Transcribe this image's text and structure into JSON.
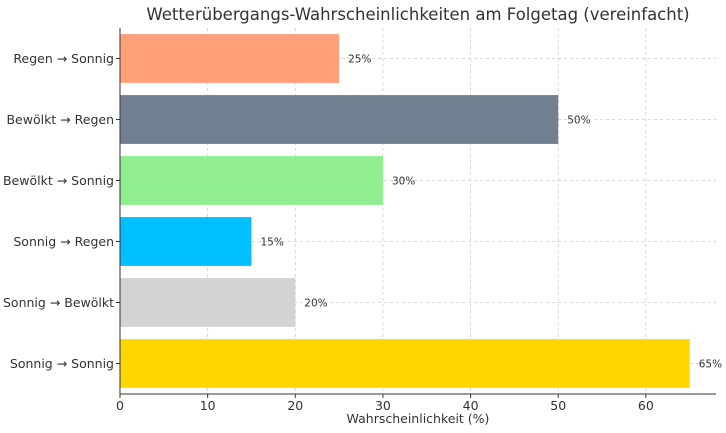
{
  "chart_data": {
    "type": "bar",
    "orientation": "horizontal",
    "title": "Wetterübergangs-Wahrscheinlichkeiten am Folgetag (vereinfacht)",
    "xlabel": "Wahrscheinlichkeit (%)",
    "ylabel": "",
    "xlim": [
      0,
      68
    ],
    "xticks": [
      0,
      10,
      20,
      30,
      40,
      50,
      60
    ],
    "xtick_labels": [
      "0",
      "10",
      "20",
      "30",
      "40",
      "50",
      "60"
    ],
    "categories": [
      "Regen → Sonnig",
      "Bewölkt → Regen",
      "Bewölkt → Sonnig",
      "Sonnig → Regen",
      "Sonnig → Bewölkt",
      "Sonnig → Sonnig"
    ],
    "values": [
      25,
      50,
      30,
      15,
      20,
      65
    ],
    "value_labels": [
      "25%",
      "50%",
      "30%",
      "15%",
      "20%",
      "65%"
    ],
    "colors": [
      "#ffa07a",
      "#708090",
      "#90ee90",
      "#00bfff",
      "#d3d3d3",
      "#ffd700"
    ],
    "grid": true
  }
}
